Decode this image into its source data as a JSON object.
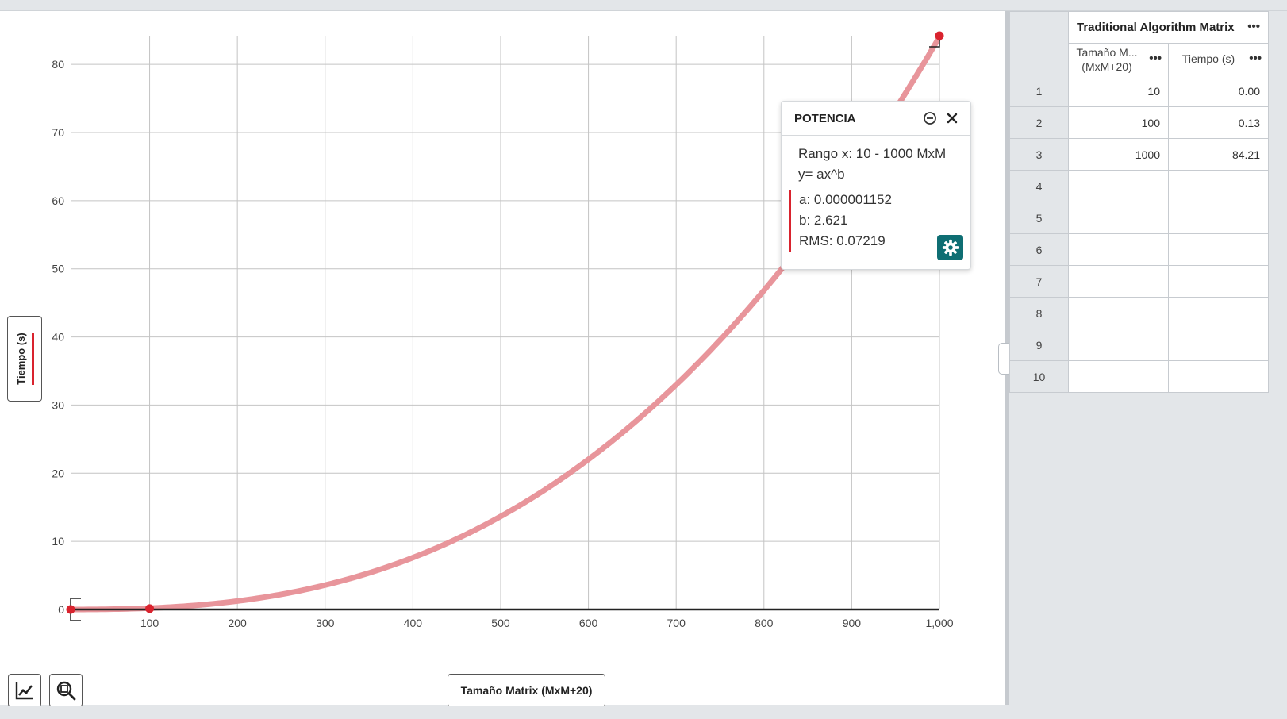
{
  "chart_data": {
    "type": "scatter",
    "title": "",
    "xlabel": "Tamaño Matrix (MxM+20)",
    "ylabel": "Tiempo (s)",
    "xlim": [
      10,
      1000
    ],
    "ylim": [
      0,
      84.21
    ],
    "grid": true,
    "x_ticks": [
      "100",
      "200",
      "300",
      "400",
      "500",
      "600",
      "700",
      "800",
      "900",
      "1,000"
    ],
    "y_ticks": [
      "0",
      "10",
      "20",
      "30",
      "40",
      "50",
      "60",
      "70",
      "80"
    ],
    "series": [
      {
        "x": [
          10,
          100,
          1000
        ],
        "y": [
          0.0,
          0.13,
          84.21
        ],
        "color": "#d9232e"
      }
    ],
    "fit": {
      "model": "power",
      "a": 1.152e-06,
      "b": 2.621,
      "color": "#e8959b"
    }
  },
  "fit_panel": {
    "title": "POTENCIA",
    "range": "Rango x: 10 - 1000 MxM",
    "equation": "y= ax^b",
    "a_line": "a: 0.000001152",
    "b_line": "b: 2.621",
    "rms_line": "RMS: 0.07219",
    "minimize_icon": "minus-circle-icon",
    "close_icon": "close-icon",
    "settings_icon": "gear-icon"
  },
  "axis_labels": {
    "y": "Tiempo (s)",
    "x": "Tamaño Matrix (MxM+20)"
  },
  "toolbar": {
    "graph_tools_icon": "graph-line-icon",
    "zoom_icon": "zoom-fit-icon"
  },
  "table": {
    "case_title": "Traditional Algorithm Matrix",
    "columns": [
      {
        "line1": "Tamaño M...",
        "line2": "(MxM+20)"
      },
      {
        "line1": "Tiempo (s)",
        "line2": ""
      }
    ],
    "menu_glyph": "•••",
    "rows": [
      {
        "num": "1",
        "size": "10",
        "time": "0.00"
      },
      {
        "num": "2",
        "size": "100",
        "time": "0.13"
      },
      {
        "num": "3",
        "size": "1000",
        "time": "84.21"
      },
      {
        "num": "4",
        "size": "",
        "time": ""
      },
      {
        "num": "5",
        "size": "",
        "time": ""
      },
      {
        "num": "6",
        "size": "",
        "time": ""
      },
      {
        "num": "7",
        "size": "",
        "time": ""
      },
      {
        "num": "8",
        "size": "",
        "time": ""
      },
      {
        "num": "9",
        "size": "",
        "time": ""
      },
      {
        "num": "10",
        "size": "",
        "time": ""
      }
    ]
  }
}
